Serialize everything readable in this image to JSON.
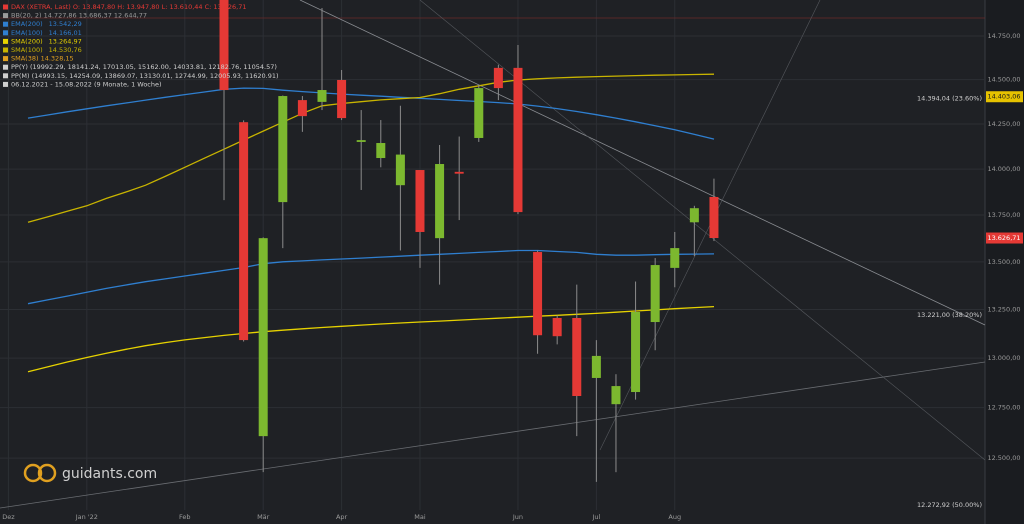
{
  "chart_data": {
    "type": "candlestick",
    "log_scale": true,
    "grid": true,
    "ylim": [
      12248,
      14960
    ],
    "xlim": [
      -1.43,
      48.83
    ],
    "yticks": [
      {
        "value": 12500,
        "label": "12.500,00"
      },
      {
        "value": 12750,
        "label": "12.750,00"
      },
      {
        "value": 13000,
        "label": "13.000,00"
      },
      {
        "value": 13250,
        "label": "13.250,00"
      },
      {
        "value": 13500,
        "label": "13.500,00"
      },
      {
        "value": 13750,
        "label": "13.750,00"
      },
      {
        "value": 14000,
        "label": "14.000,00"
      },
      {
        "value": 14250,
        "label": "14.250,00"
      },
      {
        "value": 14500,
        "label": "14.500,00"
      },
      {
        "value": 14750,
        "label": "14.750,00"
      }
    ],
    "xticks": [
      {
        "value": -1,
        "label": "Dez"
      },
      {
        "value": 3,
        "label": "Jan '22"
      },
      {
        "value": 8,
        "label": "Feb"
      },
      {
        "value": 12,
        "label": "Mär"
      },
      {
        "value": 16,
        "label": "Apr"
      },
      {
        "value": 20,
        "label": "Mai"
      },
      {
        "value": 25,
        "label": "Jun"
      },
      {
        "value": 29,
        "label": "Jul"
      },
      {
        "value": 33,
        "label": "Aug"
      }
    ],
    "categories": [
      null,
      null,
      null,
      null,
      null,
      null,
      null,
      null,
      null,
      null,
      null,
      null,
      null,
      null,
      null,
      null,
      null,
      null,
      null,
      null,
      null,
      null,
      null,
      null,
      null,
      null,
      null,
      null,
      null,
      null,
      null,
      null,
      null,
      null,
      null,
      null
    ],
    "up_color": "#7cb82f",
    "down_color": "#e53935",
    "open": [
      null,
      null,
      null,
      null,
      null,
      null,
      null,
      null,
      null,
      null,
      15450,
      14260,
      12608,
      13820,
      14384,
      14374,
      14498,
      14150,
      14061,
      13912,
      13995,
      13626,
      13985,
      14172,
      14567,
      14567,
      13552,
      13206,
      13206,
      12899,
      12767,
      12828,
      13185,
      13468,
      13711,
      13847.8
    ],
    "high": [
      null,
      null,
      null,
      null,
      null,
      null,
      null,
      null,
      null,
      null,
      15500,
      14270,
      13630,
      14410,
      14407,
      14913,
      14555,
      14328,
      14272,
      14352,
      13995,
      14133,
      14180,
      14470,
      14585,
      14698,
      13560,
      13220,
      13380,
      13092,
      12918,
      13396,
      13520,
      13659,
      13800,
      13947.8
    ],
    "low": [
      null,
      null,
      null,
      null,
      null,
      null,
      null,
      null,
      null,
      null,
      13831,
      13085,
      12431,
      13573,
      14206,
      14328,
      14272,
      13886,
      14010,
      13560,
      13468,
      13380,
      13723,
      14150,
      14384,
      13755,
      13022,
      13070,
      12608,
      12384,
      12431,
      12790,
      13040,
      13366,
      13530,
      13610.44
    ],
    "close": [
      null,
      null,
      null,
      null,
      null,
      null,
      null,
      null,
      null,
      null,
      14441,
      13092,
      13626,
      14407,
      14294,
      14441,
      14283,
      14160,
      14144,
      14080,
      13659,
      14028,
      13975,
      14452,
      14452,
      13766,
      13117,
      13112,
      12808,
      13011,
      12858,
      13237,
      13483,
      13573,
      13787,
      13626.71
    ],
    "series": [
      {
        "name": "EMA(200)",
        "last_label": "13.542,29",
        "color": "#2f7fd0",
        "values": [
          13280,
          13300,
          13320,
          13340,
          13360,
          13378,
          13395,
          13410,
          13425,
          13440,
          13455,
          13470,
          13490,
          13500,
          13505,
          13510,
          13515,
          13520,
          13525,
          13530,
          13535,
          13540,
          13545,
          13550,
          13555,
          13560,
          13560,
          13555,
          13550,
          13540,
          13535,
          13535,
          13538,
          13540,
          13541,
          13542
        ]
      },
      {
        "name": "EMA(100)",
        "last_label": "14.166,01",
        "color": "#2f7fd0",
        "values": [
          14283,
          14300,
          14318,
          14335,
          14352,
          14368,
          14384,
          14400,
          14415,
          14430,
          14445,
          14452,
          14450,
          14440,
          14432,
          14425,
          14418,
          14412,
          14406,
          14400,
          14394,
          14388,
          14382,
          14376,
          14370,
          14362,
          14350,
          14336,
          14320,
          14302,
          14283,
          14262,
          14240,
          14218,
          14192,
          14166
        ]
      },
      {
        "name": "SMA(200)",
        "last_label": "13.264,97",
        "color": "#e6d200",
        "values": [
          12930,
          12955,
          12980,
          13003,
          13025,
          13045,
          13063,
          13079,
          13093,
          13105,
          13116,
          13126,
          13135,
          13143,
          13150,
          13157,
          13163,
          13169,
          13175,
          13180,
          13185,
          13190,
          13195,
          13200,
          13205,
          13210,
          13215,
          13220,
          13225,
          13230,
          13236,
          13242,
          13248,
          13254,
          13260,
          13265
        ]
      },
      {
        "name": "SMA(100)",
        "last_label": "14.530,76",
        "color": "#c8b400",
        "values": [
          13711,
          13740,
          13770,
          13800,
          13840,
          13875,
          13912,
          13960,
          14010,
          14060,
          14110,
          14160,
          14210,
          14260,
          14310,
          14352,
          14365,
          14375,
          14385,
          14392,
          14399,
          14420,
          14445,
          14465,
          14485,
          14498,
          14505,
          14510,
          14514,
          14517,
          14520,
          14523,
          14525,
          14527,
          14529,
          14531
        ]
      }
    ],
    "legend": [
      {
        "text": "DAX (XETRA, Last)  O: 13.847,80  H: 13.947,80  L: 13.610,44  C: 13.626,71",
        "color": "#e53935"
      },
      {
        "text": "BB(20, 2)  14.727,86  13.686,37  12.644,77",
        "color": "#9a9a9a"
      },
      {
        "text": "SMA(38)  14.328,15",
        "color": "#e0a020"
      },
      {
        "text": "PP(Y)  (19992.29, 18141.24, 17013.05, 15162.00, 14033.81, 12182.76, 11054.57)",
        "color": "#cfcfcf"
      },
      {
        "text": "PP(M)  (14993.15, 14254.09, 13869.07, 13130.01, 12744.99, 12005.93, 11620.91)",
        "color": "#cfcfcf"
      },
      {
        "text": "06.12.2021 - 15.08.2022  (9 Monate, 1 Woche)",
        "color": "#cfcfcf"
      }
    ],
    "fib_levels": [
      {
        "value": 14394.04,
        "label": "14.394,04 (23.60%)"
      },
      {
        "value": 13221.0,
        "label": "13.221,00 (38.20%)"
      },
      {
        "value": 12272.92,
        "label": "12.272,92 (50.00%)"
      }
    ],
    "price_tags": [
      {
        "value": 14403.06,
        "label": "14.403,06",
        "color": "#e6c200"
      },
      {
        "value": 13626.71,
        "label": "13.626,71",
        "color": "#e53935"
      }
    ],
    "logo": "guidants.com"
  }
}
